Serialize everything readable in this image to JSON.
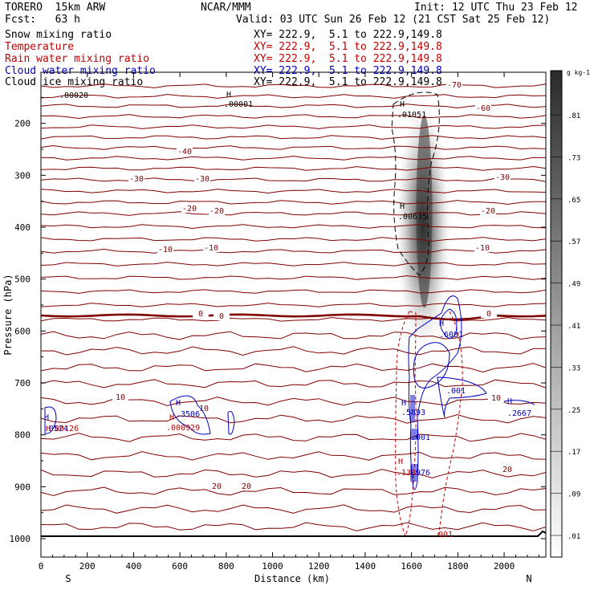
{
  "header": {
    "model": "TORERO  15km ARW",
    "org": "NCAR/MMM",
    "init": "Init: 12 UTC Thu 23 Feb 12",
    "fcst": "Fcst:   63 h",
    "valid": "Valid: 03 UTC Sun 26 Feb 12 (21 CST Sat 25 Feb 12)"
  },
  "fields": [
    {
      "name": "Snow mixing ratio",
      "xy": "XY= 222.9,  5.1 to 222.9,149.8",
      "color": "#000000"
    },
    {
      "name": "Temperature",
      "xy": "XY= 222.9,  5.1 to 222.9,149.8",
      "color": "#c00000"
    },
    {
      "name": "Rain water mixing ratio",
      "xy": "XY= 222.9,  5.1 to 222.9,149.8",
      "color": "#c00000"
    },
    {
      "name": "Cloud water mixing ratio",
      "xy": "XY= 222.9,  5.1 to 222.9,149.8",
      "color": "#0000c0"
    },
    {
      "name": "Cloud ice mixing ratio",
      "xy": "XY= 222.9,  5.1 to 222.9,149.8",
      "color": "#000000"
    }
  ],
  "chart_data": {
    "type": "cross-section",
    "ylabel": "Pressure (hPa)",
    "xlabel": "Distance (km)",
    "x_end_labels": {
      "left": "S",
      "right": "N"
    },
    "xlim": [
      0,
      2180
    ],
    "ylim": [
      1025,
      100
    ],
    "x_ticks": [
      0,
      200,
      400,
      600,
      800,
      1000,
      1200,
      1400,
      1600,
      1800,
      2000
    ],
    "y_ticks": [
      200,
      300,
      400,
      500,
      600,
      700,
      800,
      900,
      1000
    ],
    "colorbar": {
      "unit": "g kg-1",
      "labels": [
        ".01",
        ".09",
        ".17",
        ".25",
        ".33",
        ".41",
        ".49",
        ".57",
        ".65",
        ".73",
        ".81"
      ]
    },
    "temperature_labels": [
      "-70",
      "-60",
      "-40",
      "-30",
      "-30",
      "-30",
      "-20",
      "-20",
      "-20",
      "-10",
      "-10",
      "-10",
      "0",
      "0",
      "0",
      "10",
      "10",
      "10",
      "20",
      "20",
      "20"
    ],
    "annotations": [
      {
        "text": ".00020",
        "field": "snow"
      },
      {
        "text": "H",
        "field": "snow"
      },
      {
        "text": ".00001",
        "field": "snow"
      },
      {
        "text": "H",
        "field": "ice"
      },
      {
        "text": ".01051",
        "field": "ice"
      },
      {
        "text": "H",
        "field": "ice"
      },
      {
        "text": ".00635",
        "field": "ice"
      },
      {
        "text": "H",
        "field": "cloud"
      },
      {
        "text": ".3506",
        "field": "cloud"
      },
      {
        "text": ".000929",
        "field": "rain"
      },
      {
        "text": "H",
        "field": "rain"
      },
      {
        "text": "H",
        "field": "cloud"
      },
      {
        "text": ".0524",
        "field": "cloud"
      },
      {
        "text": "H",
        "field": "rain"
      },
      {
        "text": ".00126",
        "field": "rain"
      },
      {
        "text": "H",
        "field": "cloud"
      },
      {
        "text": ".5893",
        "field": "cloud"
      },
      {
        "text": ".001",
        "field": "cloud"
      },
      {
        "text": "H",
        "field": "rain"
      },
      {
        "text": ".133",
        "field": "rain"
      },
      {
        "text": ".976",
        "field": "cloud"
      },
      {
        "text": "H",
        "field": "cloud"
      },
      {
        "text": ".6081",
        "field": "cloud"
      },
      {
        "text": ".001",
        "field": "cloud"
      },
      {
        "text": "H",
        "field": "cloud"
      },
      {
        "text": ".2667",
        "field": "cloud"
      },
      {
        "text": ".001",
        "field": "rain"
      }
    ]
  }
}
